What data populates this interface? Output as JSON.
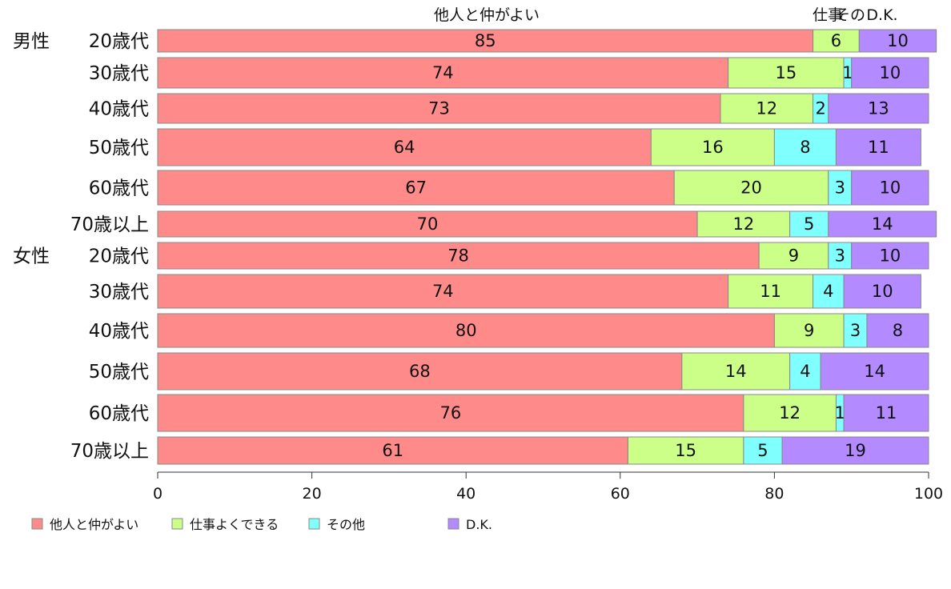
{
  "chart_data": {
    "type": "bar",
    "orientation": "horizontal",
    "stacked": true,
    "top_labels": [
      "他人と仲がよい",
      "仕事",
      "その",
      "D.K."
    ],
    "categories": [
      {
        "group": "男性",
        "label": "20歳代"
      },
      {
        "group": "",
        "label": "30歳代"
      },
      {
        "group": "",
        "label": "40歳代"
      },
      {
        "group": "",
        "label": "50歳代"
      },
      {
        "group": "",
        "label": "60歳代"
      },
      {
        "group": "",
        "label": "70歳以上"
      },
      {
        "group": "女性",
        "label": "20歳代"
      },
      {
        "group": "",
        "label": "30歳代"
      },
      {
        "group": "",
        "label": "40歳代"
      },
      {
        "group": "",
        "label": "50歳代"
      },
      {
        "group": "",
        "label": "60歳代"
      },
      {
        "group": "",
        "label": "70歳以上"
      }
    ],
    "series": [
      {
        "name": "他人と仲がよい",
        "color": "#ff8a8a",
        "values": [
          85,
          74,
          73,
          64,
          67,
          70,
          78,
          74,
          80,
          68,
          76,
          61
        ]
      },
      {
        "name": "仕事よくできる",
        "color": "#ccff88",
        "values": [
          6,
          15,
          12,
          16,
          20,
          12,
          9,
          11,
          9,
          14,
          12,
          15
        ]
      },
      {
        "name": "その他",
        "color": "#80ffff",
        "values": [
          0,
          1,
          2,
          8,
          3,
          5,
          3,
          4,
          3,
          4,
          1,
          5
        ]
      },
      {
        "name": "D.K.",
        "color": "#b38aff",
        "values": [
          10,
          10,
          13,
          11,
          10,
          14,
          10,
          10,
          8,
          14,
          11,
          19
        ]
      }
    ],
    "data_labels": [
      [
        "85",
        "74",
        "73",
        "64",
        "67",
        "70",
        "78",
        "74",
        "80",
        "68",
        "76",
        "61"
      ],
      [
        "6",
        "15",
        "12",
        "16",
        "20",
        "12",
        "9",
        "11",
        "9",
        "14",
        "12",
        "15"
      ],
      [
        "",
        "1",
        "2",
        "8",
        "3",
        "5",
        "3",
        "4",
        "3",
        "4",
        "1",
        "5"
      ],
      [
        "10",
        "10",
        "13",
        "11",
        "10",
        "14",
        "10",
        "10",
        "8",
        "14",
        "11",
        "19"
      ]
    ],
    "xlim": [
      0,
      100
    ],
    "x_ticks": [
      "0",
      "20",
      "40",
      "60",
      "80",
      "100"
    ],
    "grid": false,
    "legend_position": "bottom-left"
  }
}
